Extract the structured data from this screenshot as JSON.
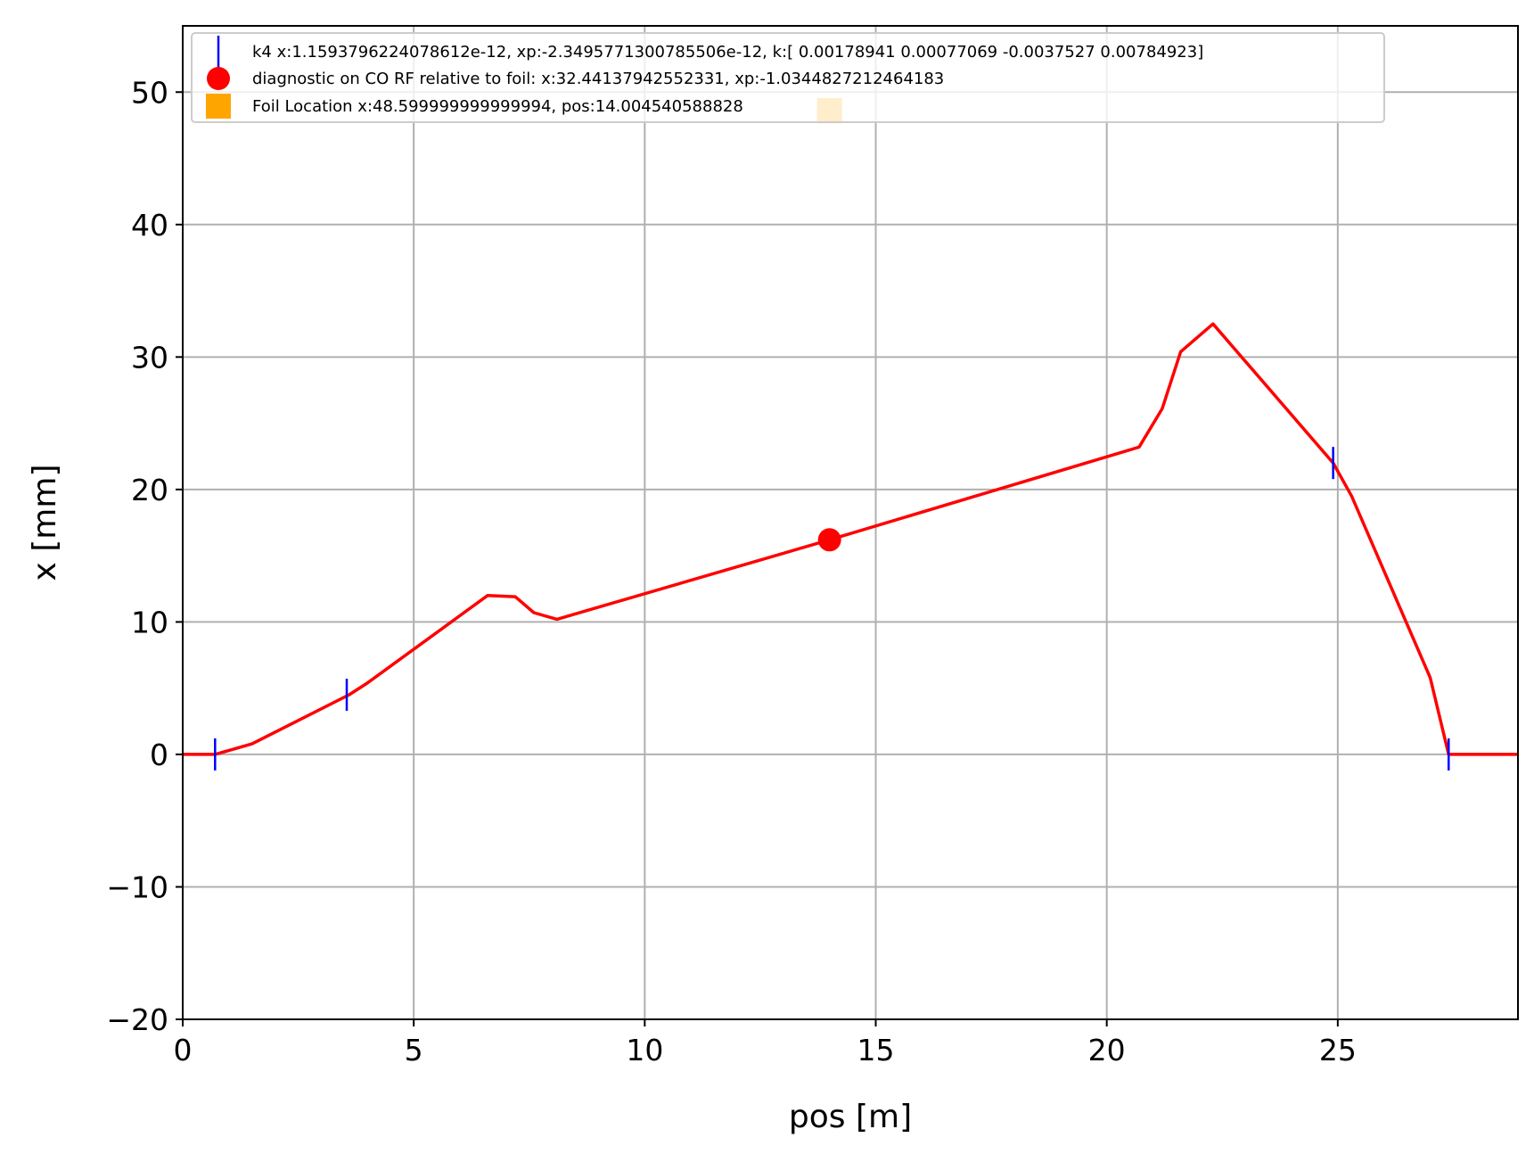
{
  "chart_data": {
    "type": "line",
    "xlabel": "pos [m]",
    "ylabel": "x [mm]",
    "xlim": [
      0,
      28.9
    ],
    "ylim": [
      -20,
      55
    ],
    "grid": true,
    "legend_position": "top-left",
    "x_ticks": [
      0,
      5,
      10,
      15,
      20,
      25
    ],
    "y_ticks": [
      -20,
      -10,
      0,
      10,
      20,
      30,
      40,
      50
    ],
    "series": [
      {
        "type": "line",
        "color": "#ff0000",
        "x": [
          0.0,
          0.7,
          1.5,
          3.6,
          4.0,
          6.6,
          7.2,
          7.6,
          8.1,
          14.0,
          20.7,
          21.2,
          21.6,
          22.3,
          24.9,
          25.3,
          27.0,
          27.4,
          28.9
        ],
        "y": [
          0.0,
          0.0,
          0.8,
          4.5,
          5.4,
          12.0,
          11.9,
          10.7,
          10.2,
          16.2,
          23.2,
          26.1,
          30.4,
          32.5,
          22.0,
          19.5,
          5.8,
          0.0,
          0.0
        ]
      },
      {
        "name": "k4 x:1.1593796224078612e-12, xp:-2.3495771300785506e-12, k:[ 0.00178941  0.00077069 -0.0037527   0.00784923]",
        "type": "marker",
        "marker": "vline",
        "color": "#0000ff",
        "x": [
          0.7,
          3.55,
          24.9,
          27.4
        ],
        "y": [
          0.0,
          4.5,
          22.0,
          0.0
        ]
      },
      {
        "name": "diagnostic on CO RF relative to foil: x:32.44137942552331, xp:-1.0344827212464183",
        "type": "marker",
        "marker": "circle",
        "color": "#ff0000",
        "x": [
          14.0
        ],
        "y": [
          16.2
        ]
      },
      {
        "name": "Foil Location x:48.599999999999994, pos:14.004540588828",
        "type": "marker",
        "marker": "square",
        "color": "#ffa500",
        "x": [
          14.0
        ],
        "y": [
          48.6
        ]
      }
    ]
  }
}
